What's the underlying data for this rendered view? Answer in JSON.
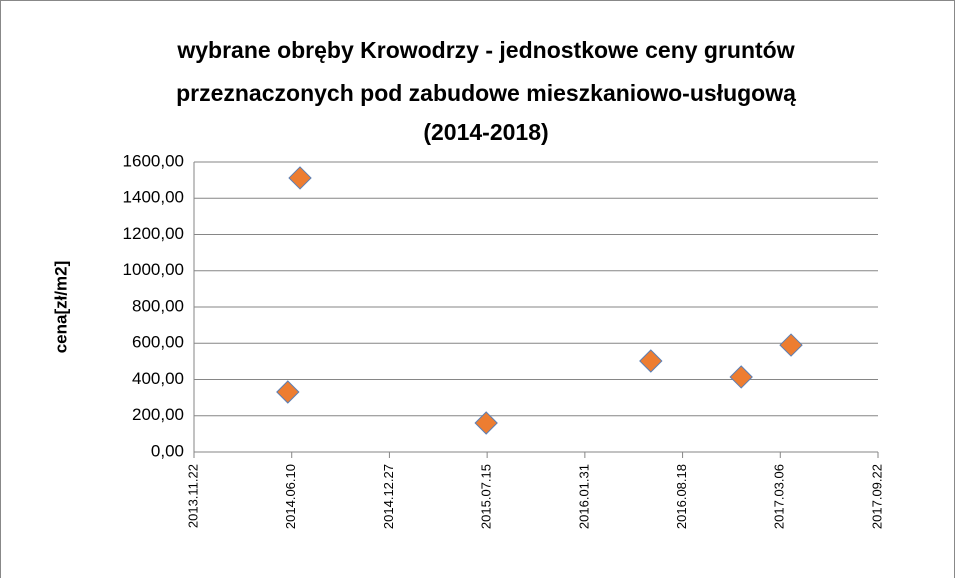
{
  "chart_data": {
    "type": "scatter",
    "title_lines": [
      "wybrane obręby Krowodrzy - jednostkowe ceny gruntów",
      "przeznaczonych  pod zabudowe mieszkaniowo-usługową",
      "(2014-2018)"
    ],
    "y_label": "cena[zł/m2]",
    "x": [
      41792,
      41817,
      42198,
      42535,
      42720,
      42822
    ],
    "values": [
      331,
      1512,
      160,
      502,
      414,
      590
    ],
    "color": "#ed7d31",
    "edge_color": "#5b7fb5",
    "xlim": [
      41600,
      43000
    ],
    "xticks": [
      {
        "value": 41600,
        "label": "2013.11.22"
      },
      {
        "value": 41800,
        "label": "2014.06.10"
      },
      {
        "value": 42000,
        "label": "2014.12.27"
      },
      {
        "value": 42200,
        "label": "2015.07.15"
      },
      {
        "value": 42400,
        "label": "2016.01.31"
      },
      {
        "value": 42600,
        "label": "2016.08.18"
      },
      {
        "value": 42800,
        "label": "2017.03.06"
      },
      {
        "value": 43000,
        "label": "2017.09.22"
      }
    ],
    "ylim": [
      0,
      1600
    ],
    "yticks": [
      {
        "value": 0,
        "label": "0,00"
      },
      {
        "value": 200,
        "label": "200,00"
      },
      {
        "value": 400,
        "label": "400,00"
      },
      {
        "value": 600,
        "label": "600,00"
      },
      {
        "value": 800,
        "label": "800,00"
      },
      {
        "value": 1000,
        "label": "1000,00"
      },
      {
        "value": 1200,
        "label": "1200,00"
      },
      {
        "value": 1400,
        "label": "1400,00"
      },
      {
        "value": 1600,
        "label": "1600,00"
      }
    ],
    "grid": true
  }
}
